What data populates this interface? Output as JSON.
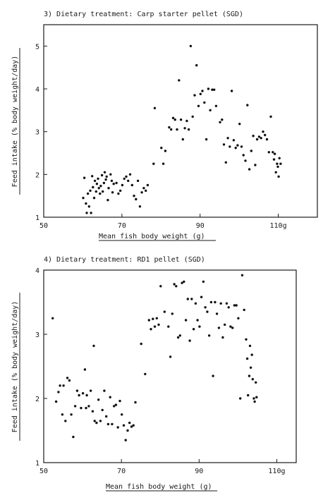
{
  "chart_data": [
    {
      "type": "scatter",
      "title": "3) Dietary treatment: Carp starter pellet (SGD)",
      "xlabel": "Mean fish body weight (g)",
      "ylabel": "Feed intake (% body weight/day)",
      "xlim": [
        50,
        120
      ],
      "ylim": [
        1,
        5.5
      ],
      "xticks": [
        {
          "v": 50,
          "label": "50"
        },
        {
          "v": 70,
          "label": "70"
        },
        {
          "v": 90,
          "label": "90"
        },
        {
          "v": 110,
          "label": "110g"
        }
      ],
      "yticks": [
        {
          "v": 1,
          "label": "1"
        },
        {
          "v": 2,
          "label": "2"
        },
        {
          "v": 3,
          "label": "3"
        },
        {
          "v": 4,
          "label": "4"
        },
        {
          "v": 5,
          "label": "5"
        }
      ],
      "grid": false,
      "legend": "none",
      "points": [
        [
          60.1,
          1.45
        ],
        [
          60.4,
          1.92
        ],
        [
          60.8,
          1.32
        ],
        [
          61.0,
          1.1
        ],
        [
          61.3,
          1.55
        ],
        [
          61.6,
          1.25
        ],
        [
          61.9,
          1.62
        ],
        [
          62.1,
          1.1
        ],
        [
          62.4,
          1.96
        ],
        [
          62.6,
          1.7
        ],
        [
          62.9,
          1.45
        ],
        [
          63.1,
          1.85
        ],
        [
          63.4,
          1.6
        ],
        [
          63.6,
          1.78
        ],
        [
          63.9,
          1.9
        ],
        [
          64.1,
          1.68
        ],
        [
          64.4,
          1.55
        ],
        [
          64.6,
          1.73
        ],
        [
          64.9,
          1.98
        ],
        [
          65.1,
          1.6
        ],
        [
          65.4,
          1.8
        ],
        [
          65.6,
          2.05
        ],
        [
          65.9,
          1.88
        ],
        [
          66.1,
          1.95
        ],
        [
          66.4,
          1.4
        ],
        [
          66.6,
          1.68
        ],
        [
          67.1,
          2.0
        ],
        [
          67.4,
          1.85
        ],
        [
          67.6,
          1.58
        ],
        [
          67.9,
          1.78
        ],
        [
          68.6,
          1.8
        ],
        [
          69.1,
          1.55
        ],
        [
          69.6,
          1.62
        ],
        [
          70.1,
          1.75
        ],
        [
          70.6,
          1.9
        ],
        [
          71.1,
          1.95
        ],
        [
          71.6,
          1.85
        ],
        [
          72.1,
          2.0
        ],
        [
          72.6,
          1.75
        ],
        [
          73.1,
          1.5
        ],
        [
          73.6,
          1.42
        ],
        [
          74.1,
          1.85
        ],
        [
          74.6,
          1.25
        ],
        [
          75.1,
          1.58
        ],
        [
          75.6,
          1.68
        ],
        [
          76.1,
          1.62
        ],
        [
          76.6,
          1.75
        ],
        [
          78.1,
          2.25
        ],
        [
          78.4,
          3.55
        ],
        [
          80.1,
          2.62
        ],
        [
          80.6,
          2.25
        ],
        [
          81.1,
          2.55
        ],
        [
          82.1,
          3.1
        ],
        [
          82.6,
          3.05
        ],
        [
          83.1,
          3.32
        ],
        [
          83.6,
          3.28
        ],
        [
          84.1,
          3.05
        ],
        [
          84.6,
          4.2
        ],
        [
          85.1,
          3.28
        ],
        [
          85.6,
          2.82
        ],
        [
          86.1,
          3.08
        ],
        [
          86.6,
          3.25
        ],
        [
          87.1,
          3.05
        ],
        [
          87.6,
          5.0
        ],
        [
          88.1,
          3.35
        ],
        [
          88.6,
          3.85
        ],
        [
          89.1,
          4.55
        ],
        [
          89.6,
          3.6
        ],
        [
          90.1,
          3.88
        ],
        [
          90.6,
          3.95
        ],
        [
          91.1,
          3.68
        ],
        [
          91.6,
          2.82
        ],
        [
          92.1,
          4.0
        ],
        [
          92.6,
          3.5
        ],
        [
          93.1,
          3.98
        ],
        [
          93.6,
          3.98
        ],
        [
          94.1,
          3.6
        ],
        [
          95.1,
          3.22
        ],
        [
          95.6,
          3.28
        ],
        [
          96.1,
          2.7
        ],
        [
          96.6,
          2.28
        ],
        [
          97.1,
          2.85
        ],
        [
          97.6,
          2.65
        ],
        [
          98.1,
          3.95
        ],
        [
          98.6,
          2.8
        ],
        [
          99.1,
          2.62
        ],
        [
          99.6,
          2.68
        ],
        [
          100.1,
          3.18
        ],
        [
          100.6,
          2.65
        ],
        [
          101.1,
          2.45
        ],
        [
          101.6,
          2.32
        ],
        [
          102.1,
          3.62
        ],
        [
          102.6,
          2.12
        ],
        [
          103.1,
          2.55
        ],
        [
          103.6,
          2.9
        ],
        [
          104.1,
          2.22
        ],
        [
          104.6,
          2.82
        ],
        [
          105.1,
          2.88
        ],
        [
          105.6,
          2.85
        ],
        [
          106.1,
          3.0
        ],
        [
          106.6,
          2.92
        ],
        [
          107.1,
          2.82
        ],
        [
          107.6,
          2.52
        ],
        [
          108.1,
          3.35
        ],
        [
          108.6,
          2.52
        ],
        [
          108.9,
          2.35
        ],
        [
          109.1,
          2.48
        ],
        [
          109.4,
          2.05
        ],
        [
          109.7,
          2.25
        ],
        [
          109.9,
          2.18
        ],
        [
          110.1,
          1.95
        ],
        [
          110.3,
          2.38
        ],
        [
          110.6,
          2.25
        ]
      ]
    },
    {
      "type": "scatter",
      "title": "4) Dietary treatment: RD1 pellet (SGD)",
      "xlabel": "Mean fish body weight (g)",
      "ylabel": "Feed intake (% body weight/day)",
      "xlim": [
        50,
        115
      ],
      "ylim": [
        1,
        4
      ],
      "xticks": [
        {
          "v": 50,
          "label": "50"
        },
        {
          "v": 70,
          "label": "70"
        },
        {
          "v": 90,
          "label": "90"
        },
        {
          "v": 110,
          "label": "110g"
        }
      ],
      "yticks": [
        {
          "v": 1,
          "label": "1"
        },
        {
          "v": 2,
          "label": "2"
        },
        {
          "v": 3,
          "label": "3"
        },
        {
          "v": 4,
          "label": "4"
        }
      ],
      "grid": false,
      "legend": "none",
      "points": [
        [
          52.3,
          3.25
        ],
        [
          53.2,
          1.95
        ],
        [
          53.8,
          2.1
        ],
        [
          54.2,
          2.2
        ],
        [
          54.8,
          1.75
        ],
        [
          55.1,
          2.2
        ],
        [
          55.6,
          1.65
        ],
        [
          56.1,
          2.32
        ],
        [
          56.6,
          2.28
        ],
        [
          57.1,
          1.75
        ],
        [
          57.6,
          1.4
        ],
        [
          58.1,
          1.88
        ],
        [
          58.6,
          2.12
        ],
        [
          59.1,
          2.05
        ],
        [
          59.6,
          1.85
        ],
        [
          60.1,
          2.08
        ],
        [
          60.6,
          2.45
        ],
        [
          60.9,
          1.85
        ],
        [
          61.1,
          2.05
        ],
        [
          61.6,
          1.88
        ],
        [
          62.1,
          2.12
        ],
        [
          62.6,
          1.8
        ],
        [
          62.9,
          2.82
        ],
        [
          63.1,
          1.65
        ],
        [
          63.6,
          1.62
        ],
        [
          64.1,
          1.98
        ],
        [
          64.6,
          1.65
        ],
        [
          65.1,
          1.82
        ],
        [
          65.6,
          2.12
        ],
        [
          66.1,
          1.72
        ],
        [
          66.6,
          1.6
        ],
        [
          67.1,
          2.02
        ],
        [
          67.6,
          1.6
        ],
        [
          68.1,
          1.88
        ],
        [
          68.6,
          1.9
        ],
        [
          69.1,
          1.55
        ],
        [
          69.6,
          1.96
        ],
        [
          70.1,
          1.75
        ],
        [
          70.6,
          1.58
        ],
        [
          71.1,
          1.35
        ],
        [
          71.6,
          1.5
        ],
        [
          72.1,
          1.62
        ],
        [
          72.6,
          1.56
        ],
        [
          73.1,
          1.58
        ],
        [
          73.6,
          1.94
        ],
        [
          75.1,
          2.85
        ],
        [
          76.1,
          2.38
        ],
        [
          77.1,
          3.22
        ],
        [
          77.6,
          3.08
        ],
        [
          78.1,
          3.24
        ],
        [
          78.6,
          3.12
        ],
        [
          79.1,
          3.25
        ],
        [
          79.6,
          3.15
        ],
        [
          80.1,
          3.75
        ],
        [
          81.1,
          3.35
        ],
        [
          82.1,
          3.12
        ],
        [
          82.6,
          2.65
        ],
        [
          83.1,
          3.32
        ],
        [
          83.6,
          3.78
        ],
        [
          84.1,
          3.75
        ],
        [
          84.6,
          2.95
        ],
        [
          85.1,
          2.98
        ],
        [
          85.6,
          3.8
        ],
        [
          86.1,
          3.82
        ],
        [
          86.6,
          3.22
        ],
        [
          87.1,
          3.55
        ],
        [
          87.6,
          2.9
        ],
        [
          88.1,
          3.55
        ],
        [
          88.6,
          3.08
        ],
        [
          89.1,
          3.48
        ],
        [
          89.6,
          3.22
        ],
        [
          90.1,
          3.12
        ],
        [
          90.6,
          3.58
        ],
        [
          91.1,
          3.82
        ],
        [
          91.6,
          3.42
        ],
        [
          92.1,
          3.35
        ],
        [
          92.6,
          2.98
        ],
        [
          93.1,
          3.5
        ],
        [
          93.6,
          2.35
        ],
        [
          94.1,
          3.5
        ],
        [
          94.6,
          3.32
        ],
        [
          95.1,
          3.1
        ],
        [
          95.6,
          3.48
        ],
        [
          96.1,
          2.95
        ],
        [
          96.6,
          3.15
        ],
        [
          97.1,
          3.48
        ],
        [
          97.6,
          3.42
        ],
        [
          98.1,
          3.12
        ],
        [
          98.6,
          3.1
        ],
        [
          99.1,
          3.45
        ],
        [
          99.6,
          3.45
        ],
        [
          100.1,
          3.25
        ],
        [
          100.6,
          2.0
        ],
        [
          101.1,
          3.92
        ],
        [
          101.6,
          3.38
        ],
        [
          102.1,
          2.92
        ],
        [
          102.4,
          2.62
        ],
        [
          102.6,
          2.05
        ],
        [
          102.9,
          2.35
        ],
        [
          103.1,
          2.82
        ],
        [
          103.3,
          2.48
        ],
        [
          103.6,
          2.68
        ],
        [
          103.8,
          2.3
        ],
        [
          104.1,
          2.0
        ],
        [
          104.3,
          1.95
        ],
        [
          104.6,
          2.25
        ],
        [
          104.8,
          2.02
        ]
      ]
    }
  ]
}
